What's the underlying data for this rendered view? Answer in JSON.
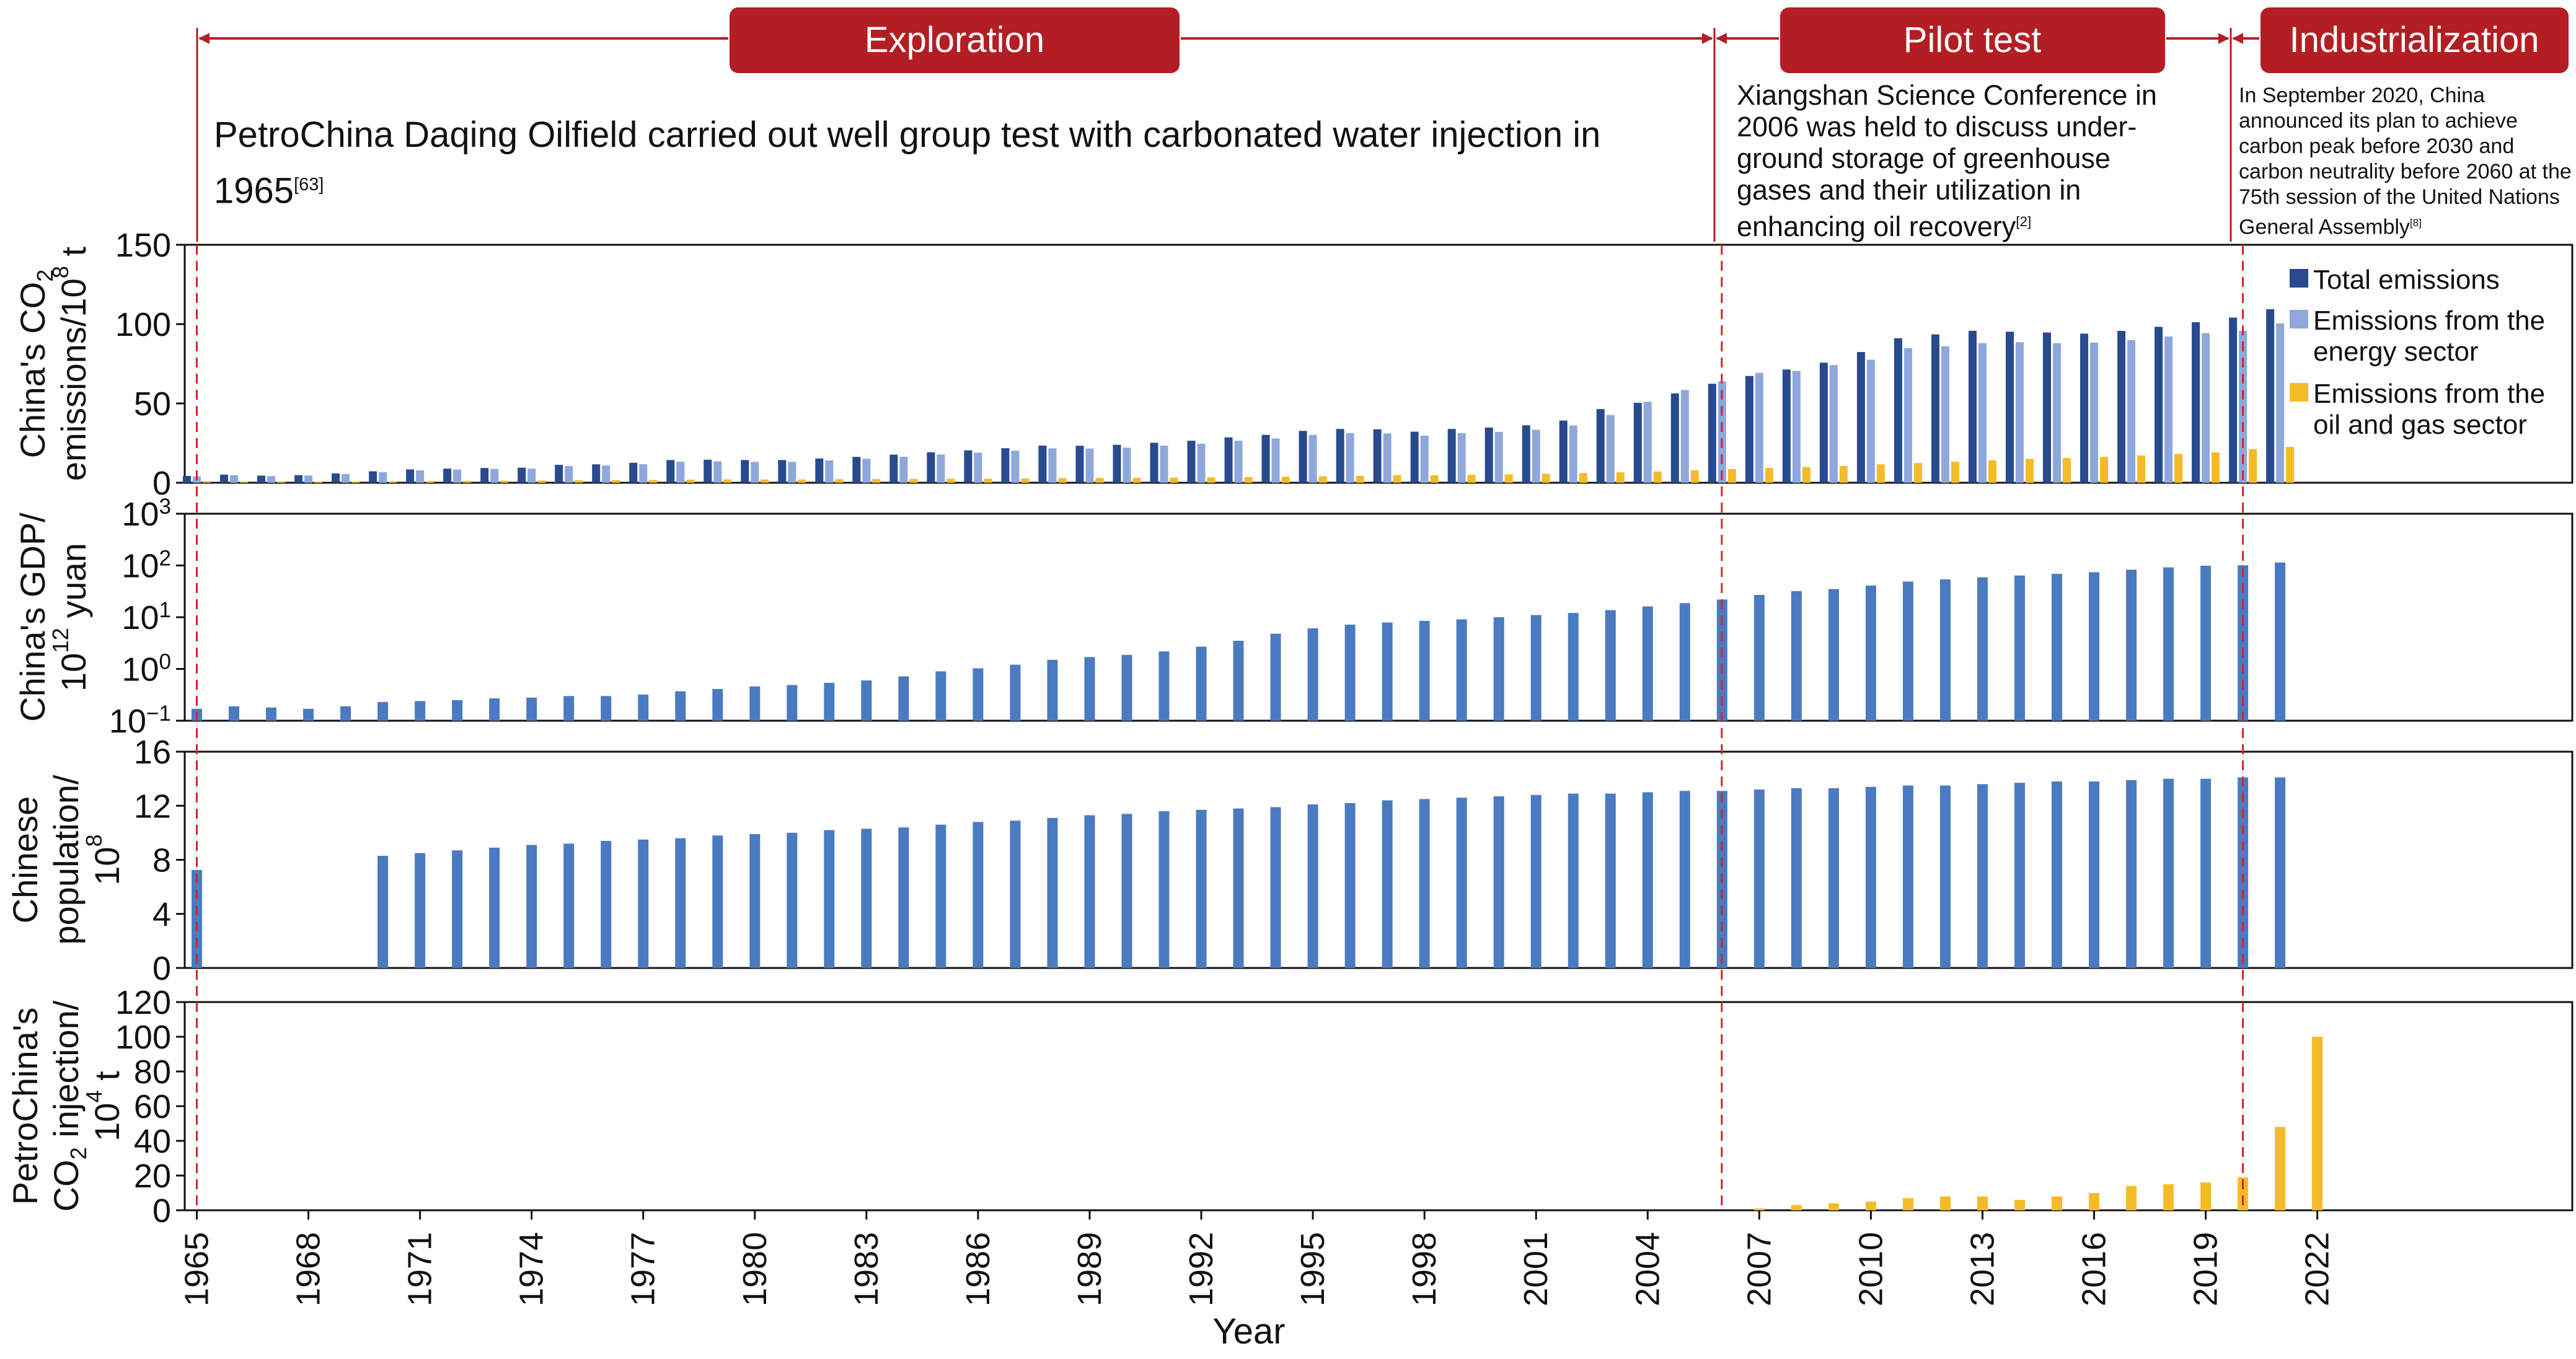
{
  "phases": [
    {
      "label": "Exploration",
      "start_year": 1965,
      "end_year": 2006
    },
    {
      "label": "Pilot test",
      "start_year": 2006,
      "end_year": 2020
    },
    {
      "label": "Industrialization",
      "start_year": 2020,
      "end_year": 2022
    }
  ],
  "notes": {
    "exploration": {
      "text": "PetroChina Daqing Oilfield carried out well group test with carbonated water injection in 1965",
      "ref": "[63]"
    },
    "pilot": {
      "text": "Xiangshan Science Conference in 2006 was held to discuss under-ground storage of greenhouse gases and their utilization in enhancing oil recovery",
      "ref": "[2]"
    },
    "industrialization": {
      "text": "In September 2020, China announced its plan to achieve carbon peak before 2030 and carbon neutrality before 2060 at the 75th session of the United Nations General Assembly",
      "ref": "[8]"
    }
  },
  "colors": {
    "phase_bar": "#B31E23",
    "total_emissions": "#284A8E",
    "energy_sector": "#8FA8DC",
    "oil_gas_sector": "#F5BB27",
    "single_blue": "#4A7BC0",
    "marker_line": "#D6232B"
  },
  "chart_data": [
    {
      "type": "bar",
      "ylabel": [
        "China's CO2",
        "emissions/10^8 t"
      ],
      "ylim": [
        0,
        150
      ],
      "yticks": [
        "0",
        "50",
        "100",
        "150"
      ],
      "legend_position": "top-right",
      "series": [
        {
          "name": "Total emissions",
          "color_key": "total_emissions",
          "x": [
            1965,
            1966,
            1967,
            1968,
            1969,
            1970,
            1971,
            1972,
            1973,
            1974,
            1975,
            1976,
            1977,
            1978,
            1979,
            1980,
            1981,
            1982,
            1983,
            1984,
            1985,
            1986,
            1987,
            1988,
            1989,
            1990,
            1991,
            1992,
            1993,
            1994,
            1995,
            1996,
            1997,
            1998,
            1999,
            2000,
            2001,
            2002,
            2003,
            2004,
            2005,
            2006,
            2007,
            2008,
            2009,
            2010,
            2011,
            2012,
            2013,
            2014,
            2015,
            2016,
            2017,
            2018,
            2019,
            2020,
            2021
          ],
          "values": [
            4.3,
            5.1,
            4.5,
            4.8,
            5.9,
            7.2,
            8.4,
            8.9,
            9.3,
            9.5,
            11.3,
            11.6,
            12.6,
            14.3,
            14.5,
            14.3,
            14.3,
            15.3,
            16.3,
            17.7,
            19.2,
            20.4,
            21.8,
            23.4,
            23.3,
            23.9,
            25.2,
            26.5,
            28.6,
            30.2,
            32.7,
            33.9,
            33.7,
            32.2,
            33.9,
            34.8,
            36.2,
            39.2,
            46.4,
            50.4,
            56.3,
            62.4,
            67.3,
            71.4,
            75.7,
            82.4,
            91.1,
            93.5,
            95.8,
            95.2,
            94.7,
            94.0,
            95.7,
            98.3,
            101.2,
            104.1,
            109.4
          ]
        },
        {
          "name": "Emissions from the energy sector",
          "color_key": "energy_sector",
          "x": [
            1965,
            1966,
            1967,
            1968,
            1969,
            1970,
            1971,
            1972,
            1973,
            1974,
            1975,
            1976,
            1977,
            1978,
            1979,
            1980,
            1981,
            1982,
            1983,
            1984,
            1985,
            1986,
            1987,
            1988,
            1989,
            1990,
            1991,
            1992,
            1993,
            1994,
            1995,
            1996,
            1997,
            1998,
            1999,
            2000,
            2001,
            2002,
            2003,
            2004,
            2005,
            2006,
            2007,
            2008,
            2009,
            2010,
            2011,
            2012,
            2013,
            2014,
            2015,
            2016,
            2017,
            2018,
            2019,
            2020,
            2021
          ],
          "values": [
            4,
            4.7,
            4.2,
            4.5,
            5.5,
            6.7,
            7.8,
            8.3,
            8.7,
            8.9,
            10.5,
            10.9,
            11.7,
            13.3,
            13.5,
            13.2,
            13.2,
            14.1,
            15.1,
            16.4,
            17.8,
            18.9,
            20.2,
            21.7,
            21.6,
            22.1,
            23.4,
            24.6,
            26.5,
            27.9,
            30.2,
            31.3,
            31.1,
            29.7,
            31.3,
            32.1,
            33.4,
            36.1,
            42.7,
            51,
            58.5,
            63.9,
            69.3,
            70.5,
            74.2,
            77.6,
            84.9,
            86,
            88,
            88.6,
            88,
            88.4,
            89.9,
            92.2,
            94.3,
            95.8,
            100.5
          ]
        },
        {
          "name": "Emissions from the oil and gas sector",
          "color_key": "oil_gas_sector",
          "x": [
            1965,
            1966,
            1967,
            1968,
            1969,
            1970,
            1971,
            1972,
            1973,
            1974,
            1975,
            1976,
            1977,
            1978,
            1979,
            1980,
            1981,
            1982,
            1983,
            1984,
            1985,
            1986,
            1987,
            1988,
            1989,
            1990,
            1991,
            1992,
            1993,
            1994,
            1995,
            1996,
            1997,
            1998,
            1999,
            2000,
            2001,
            2002,
            2003,
            2004,
            2005,
            2006,
            2007,
            2008,
            2009,
            2010,
            2011,
            2012,
            2013,
            2014,
            2015,
            2016,
            2017,
            2018,
            2019,
            2020,
            2021
          ],
          "values": [
            0.4,
            0.5,
            0.5,
            0.6,
            0.7,
            0.8,
            1,
            1.2,
            1.3,
            1.4,
            1.6,
            1.7,
            1.8,
            2,
            2.1,
            2.1,
            2.1,
            2.2,
            2.3,
            2.4,
            2.5,
            2.6,
            2.7,
            2.9,
            3,
            3.1,
            3.2,
            3.4,
            3.6,
            3.8,
            4.1,
            4.4,
            4.7,
            4.8,
            5.0,
            5.3,
            5.6,
            6.1,
            6.6,
            7.1,
            7.8,
            8.6,
            9.3,
            9.9,
            10.6,
            11.6,
            12.4,
            13.3,
            14.2,
            15.0,
            15.6,
            16.3,
            17.2,
            18.2,
            19.2,
            21.2,
            22.6
          ]
        }
      ]
    },
    {
      "type": "bar",
      "ylabel": [
        "China's GDP/",
        "10^12 yuan"
      ],
      "scale": "log",
      "ylim": [
        0.1,
        1000
      ],
      "yticks": [
        "10^-1",
        "10^0",
        "10^1",
        "10^2",
        "10^3"
      ],
      "series": [
        {
          "name": "",
          "color_key": "single_blue",
          "x": [
            1965,
            1966,
            1967,
            1968,
            1969,
            1970,
            1971,
            1972,
            1973,
            1974,
            1975,
            1976,
            1977,
            1978,
            1979,
            1980,
            1981,
            1982,
            1983,
            1984,
            1985,
            1986,
            1987,
            1988,
            1989,
            1990,
            1991,
            1992,
            1993,
            1994,
            1995,
            1996,
            1997,
            1998,
            1999,
            2000,
            2001,
            2002,
            2003,
            2004,
            2005,
            2006,
            2007,
            2008,
            2009,
            2010,
            2011,
            2012,
            2013,
            2014,
            2015,
            2016,
            2017,
            2018,
            2019,
            2020,
            2021
          ],
          "values": [
            0.17,
            0.19,
            0.18,
            0.17,
            0.19,
            0.23,
            0.24,
            0.25,
            0.27,
            0.28,
            0.3,
            0.3,
            0.32,
            0.37,
            0.41,
            0.46,
            0.49,
            0.54,
            0.6,
            0.72,
            0.9,
            1.03,
            1.21,
            1.5,
            1.7,
            1.87,
            2.18,
            2.7,
            3.5,
            4.8,
            6.1,
            7.2,
            7.9,
            8.5,
            9.1,
            10.0,
            11.0,
            12.1,
            13.7,
            16.2,
            18.7,
            22.0,
            27.0,
            32.0,
            35.0,
            41.0,
            49.0,
            54.0,
            59.0,
            64.0,
            69.0,
            74.0,
            83.0,
            92.0,
            99.0,
            101.0,
            114.0
          ]
        }
      ]
    },
    {
      "type": "bar",
      "ylabel": [
        "Chinese",
        "population/",
        "10^8"
      ],
      "ylim": [
        0,
        16
      ],
      "yticks": [
        "0",
        "4",
        "8",
        "12",
        "16"
      ],
      "series": [
        {
          "name": "",
          "color_key": "single_blue",
          "x": [
            1965,
            1970,
            1971,
            1972,
            1973,
            1974,
            1975,
            1976,
            1977,
            1978,
            1979,
            1980,
            1981,
            1982,
            1983,
            1984,
            1985,
            1986,
            1987,
            1988,
            1989,
            1990,
            1991,
            1992,
            1993,
            1994,
            1995,
            1996,
            1997,
            1998,
            1999,
            2000,
            2001,
            2002,
            2003,
            2004,
            2005,
            2006,
            2007,
            2008,
            2009,
            2010,
            2011,
            2012,
            2013,
            2014,
            2015,
            2016,
            2017,
            2018,
            2019,
            2020,
            2021
          ],
          "values": [
            7.25,
            8.3,
            8.5,
            8.7,
            8.9,
            9.1,
            9.2,
            9.4,
            9.5,
            9.6,
            9.8,
            9.9,
            10.0,
            10.2,
            10.3,
            10.4,
            10.6,
            10.8,
            10.9,
            11.1,
            11.3,
            11.4,
            11.6,
            11.7,
            11.8,
            11.9,
            12.1,
            12.2,
            12.4,
            12.5,
            12.6,
            12.7,
            12.8,
            12.9,
            12.9,
            13.0,
            13.1,
            13.1,
            13.2,
            13.3,
            13.3,
            13.4,
            13.5,
            13.5,
            13.6,
            13.7,
            13.8,
            13.8,
            13.9,
            14.0,
            14.0,
            14.1,
            14.1
          ]
        }
      ]
    },
    {
      "type": "bar",
      "ylabel": [
        "PetroChina's",
        "CO2 injection/",
        "10^4 t"
      ],
      "ylim": [
        0,
        120
      ],
      "yticks": [
        "0",
        "20",
        "40",
        "60",
        "80",
        "100",
        "120"
      ],
      "series": [
        {
          "name": "",
          "color_key": "oil_gas_sector",
          "x": [
            2007,
            2008,
            2009,
            2010,
            2011,
            2012,
            2013,
            2014,
            2015,
            2016,
            2017,
            2018,
            2019,
            2020,
            2021,
            2022
          ],
          "values": [
            1,
            3,
            4,
            5,
            7,
            8,
            8,
            6,
            8,
            10,
            14,
            15,
            16,
            19,
            48,
            100
          ]
        }
      ]
    }
  ],
  "x_axis": {
    "label": "Year",
    "ticks": [
      "1965",
      "1968",
      "1971",
      "1974",
      "1977",
      "1980",
      "1983",
      "1986",
      "1989",
      "1992",
      "1995",
      "1998",
      "2001",
      "2004",
      "2007",
      "2010",
      "2013",
      "2016",
      "2019",
      "2022"
    ]
  }
}
